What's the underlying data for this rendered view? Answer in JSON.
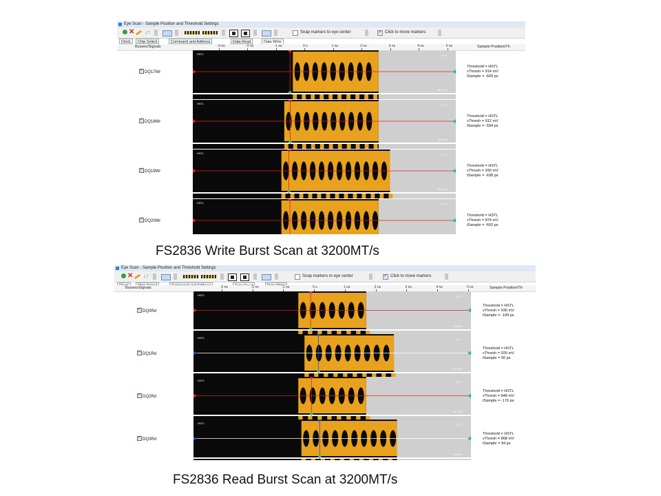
{
  "captions": {
    "write": "FS2836 Write Burst Scan at 3200MT/s",
    "read": "FS2836 Read Burst Scan at 3200MT/s"
  },
  "window": {
    "title": "Eye Scan - Sample Position and Threshold Settings",
    "snap_label": "Snap markers to eye center",
    "click_move_label": "Click to move markers",
    "snap_checked": false,
    "click_move_checked": true
  },
  "tabs": [
    "Clock",
    "Chip Select",
    "Command and Address",
    "Data Read",
    "Data Write"
  ],
  "column_headers": {
    "busses": "Busses/Signals",
    "sample": "Sample Position/Th"
  },
  "ruler_ticks": [
    "-3 ns",
    "-2 ns",
    "-1 ns",
    "0 s",
    "1 ns",
    "2 ns",
    "3 ns",
    "4 ns",
    "5 ns"
  ],
  "plot_labels": {
    "hstl": "HSTL",
    "top_v": "1.2 V",
    "bottom_mv": "600 mV"
  },
  "colors": {
    "eye_gold": "#e8a21e",
    "eye_black": "#0a0a0a",
    "unsampled": "#cfcfcf",
    "threshold_red": "#e02020",
    "marker_green": "#22c070",
    "marker_blue": "#2050c0"
  },
  "write_scan": {
    "active_tab": "Data Write",
    "signals": [
      {
        "name": "DQ17Wr",
        "threshold": "Threshold = HSTL",
        "vthresh": "vThresh = 914 mV",
        "tsample": "tSample = -600 ps",
        "scan_end_ns": 2.5,
        "eye_start_ns": -0.5
      },
      {
        "name": "DQ18Wr",
        "threshold": "Threshold = HSTL",
        "vthresh": "vThresh = 912 mV",
        "tsample": "tSample = -594 ps",
        "scan_end_ns": 2.5,
        "eye_start_ns": -0.8
      },
      {
        "name": "DQ19Wr",
        "threshold": "Threshold = HSTL",
        "vthresh": "vThresh = 930 mV",
        "tsample": "tSample = -638 ps",
        "scan_end_ns": 2.9,
        "eye_start_ns": -0.9
      },
      {
        "name": "DQ20Wr",
        "threshold": "Threshold = HSTL",
        "vthresh": "vThresh = 874 mV",
        "tsample": "tSample = -602 ps",
        "scan_end_ns": 2.5,
        "eye_start_ns": -0.9
      }
    ]
  },
  "read_scan": {
    "active_tab": "Data Read",
    "signals": [
      {
        "name": "DQ0Rd",
        "threshold": "Threshold = HSTL",
        "vthresh": "vThresh = 930 mV",
        "tsample": "tSample = -199 ps",
        "scan_end_ns": 1.6,
        "eye_start_ns": -0.6
      },
      {
        "name": "DQ1Rd",
        "threshold": "Threshold = HSTL",
        "vthresh": "vThresh = 926 mV",
        "tsample": "tSample = 50 ps",
        "scan_end_ns": 2.5,
        "eye_start_ns": -0.4
      },
      {
        "name": "DQ2Rd",
        "threshold": "Threshold = HSTL",
        "vthresh": "vThresh = 848 mV",
        "tsample": "tSample = -176 ps",
        "scan_end_ns": 1.6,
        "eye_start_ns": -0.6
      },
      {
        "name": "DQ3Rd",
        "threshold": "Threshold = HSTL",
        "vthresh": "vThresh = 868 mV",
        "tsample": "tSample = 94 ps",
        "scan_end_ns": 2.6,
        "eye_start_ns": -0.5
      }
    ]
  }
}
